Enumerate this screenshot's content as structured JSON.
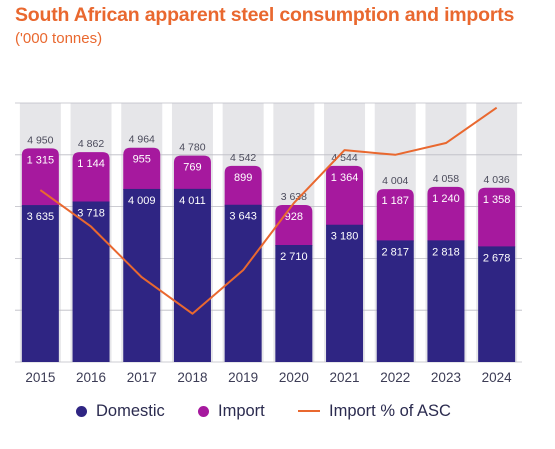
{
  "colors": {
    "title": "#e9682f",
    "domestic": "#2f2583",
    "import": "#a6199e",
    "import_share_line": "#e9682f",
    "column_bg": "#e6e6e9",
    "axis_text": "#3c3c55",
    "value_text_dark": "#4b4b5b",
    "value_text_light": "#ffffff"
  },
  "header": {
    "title": "South African apparent steel consumption and imports",
    "subtitle": "('000 tonnes)"
  },
  "legend": {
    "domestic_label": "Domestic",
    "import_label": "Import",
    "import_share_label": "Import % of ASC"
  },
  "chart_data": {
    "type": "bar",
    "stacked": true,
    "title": "South African apparent steel consumption and imports",
    "subtitle": "('000 tonnes)",
    "categories": [
      "2015",
      "2016",
      "2017",
      "2018",
      "2019",
      "2020",
      "2021",
      "2022",
      "2023",
      "2024"
    ],
    "series": [
      {
        "name": "Domestic",
        "values": [
          3635,
          3718,
          4009,
          4011,
          3643,
          2710,
          3180,
          2817,
          2818,
          2678
        ]
      },
      {
        "name": "Import",
        "values": [
          1315,
          1144,
          955,
          769,
          899,
          928,
          1364,
          1187,
          1240,
          1358
        ]
      }
    ],
    "totals": [
      4950,
      4862,
      4964,
      4780,
      4542,
      3638,
      4544,
      4004,
      4058,
      4036
    ],
    "total_labels": [
      "4 950",
      "4 862",
      "4 964",
      "4 780",
      "4 542",
      "3 638",
      "4 544",
      "4 004",
      "4 058",
      "4 036"
    ],
    "domestic_labels": [
      "3 635",
      "3 718",
      "4 009",
      "4 011",
      "3 643",
      "2 710",
      "3 180",
      "2 817",
      "2 818",
      "2 678"
    ],
    "import_labels": [
      "1 315",
      "1 144",
      "955",
      "769",
      "899",
      "928",
      "1 364",
      "1 187",
      "1 240",
      "1 358"
    ],
    "line_series": {
      "name": "Import % of ASC",
      "values": [
        26.6,
        23.5,
        19.2,
        16.1,
        19.8,
        25.5,
        30.0,
        29.6,
        30.6,
        33.6
      ]
    },
    "ylim": [
      0,
      6000
    ],
    "line_ylim": [
      12,
      34
    ],
    "grid": true,
    "legend_position": "bottom"
  }
}
